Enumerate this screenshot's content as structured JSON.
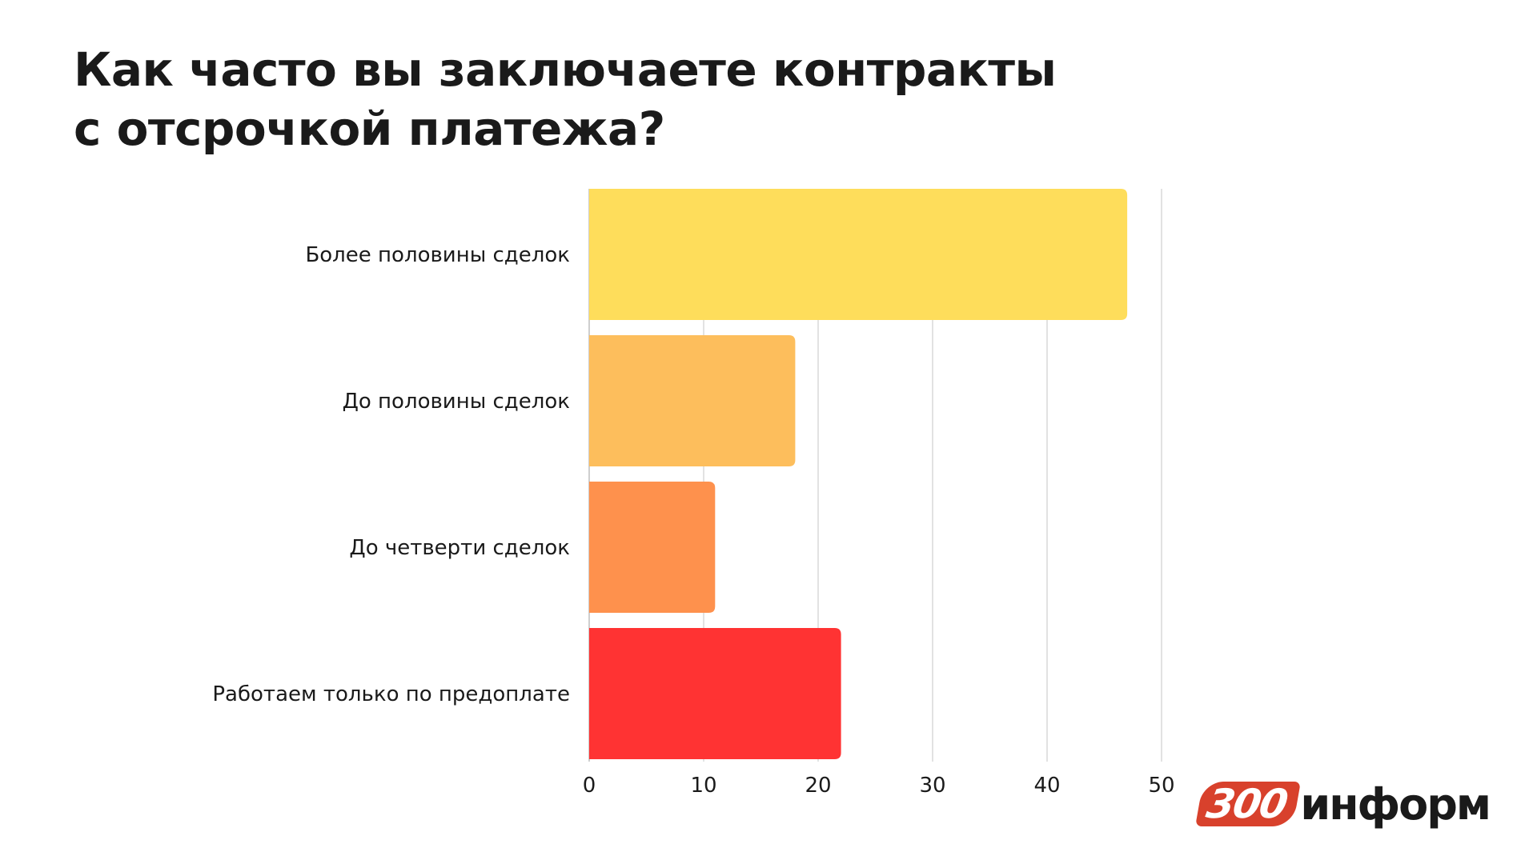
{
  "title": {
    "line1": "Как часто вы заключаете контракты",
    "line2": "с отсрочкой платежа?"
  },
  "chart_data": {
    "type": "bar",
    "orientation": "horizontal",
    "title": "Как часто вы заключаете контракты с отсрочкой платежа?",
    "categories": [
      "Более половины сделок",
      "До половины сделок",
      "До четверти сделок",
      "Работаем только по предоплате"
    ],
    "values": [
      47,
      18,
      11,
      22
    ],
    "colors": [
      "#fedd5b",
      "#fdbe5c",
      "#fe914d",
      "#ff3333"
    ],
    "xlim": [
      0,
      50
    ],
    "xticks": [
      0,
      10,
      20,
      30,
      40,
      50
    ],
    "xlabel": "",
    "ylabel": "",
    "grid": "vertical"
  },
  "logo": {
    "badge": "300",
    "text": "информ",
    "badge_color": "#d8412c"
  }
}
